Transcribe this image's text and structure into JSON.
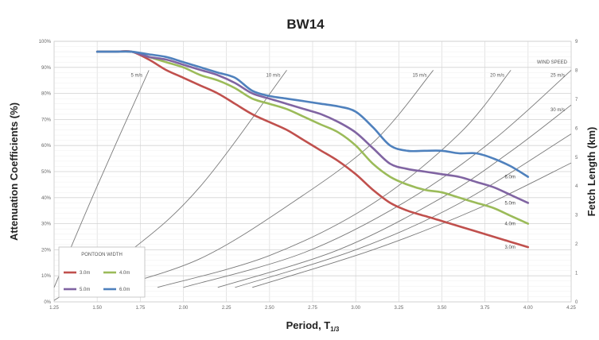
{
  "chart_data": {
    "type": "line",
    "title": "BW14",
    "xlabel": "Period, T",
    "xlabel_sub": "1/3",
    "ylabel": "Attenuation Coefficients (%)",
    "y2label": "Fetch Length (km)",
    "xlim": [
      1.25,
      4.25
    ],
    "ylim": [
      0,
      100
    ],
    "y2lim": [
      0,
      9
    ],
    "x_ticks": [
      "1.25",
      "1.50",
      "1.75",
      "2.00",
      "2.25",
      "2.50",
      "2.75",
      "3.00",
      "3.25",
      "3.50",
      "3.75",
      "4.00",
      "4.25"
    ],
    "y_ticks": [
      "0%",
      "10%",
      "20%",
      "30%",
      "40%",
      "50%",
      "60%",
      "70%",
      "80%",
      "90%",
      "100%"
    ],
    "y2_ticks": [
      "0",
      "1",
      "2",
      "3",
      "4",
      "5",
      "6",
      "7",
      "8",
      "9"
    ],
    "legend_title": "PONTOON WIDTH",
    "series": [
      {
        "name": "3.0m",
        "color": "#c0504d",
        "end_label": "3.0m",
        "x": [
          1.5,
          1.6,
          1.7,
          1.8,
          1.9,
          2.0,
          2.1,
          2.2,
          2.3,
          2.4,
          2.5,
          2.6,
          2.7,
          2.8,
          2.9,
          3.0,
          3.1,
          3.2,
          3.3,
          3.4,
          3.5,
          3.6,
          3.7,
          3.8,
          3.9,
          4.0
        ],
        "y": [
          96,
          96,
          96,
          93,
          89,
          86,
          83,
          80,
          76,
          72,
          69,
          66,
          62,
          58,
          54,
          49,
          43,
          38,
          35,
          33,
          31,
          29,
          27,
          25,
          23,
          21
        ]
      },
      {
        "name": "4.0m",
        "color": "#9bbb59",
        "end_label": "4.0m",
        "x": [
          1.5,
          1.6,
          1.7,
          1.8,
          1.9,
          2.0,
          2.1,
          2.2,
          2.3,
          2.4,
          2.5,
          2.6,
          2.7,
          2.8,
          2.9,
          3.0,
          3.1,
          3.2,
          3.3,
          3.4,
          3.5,
          3.6,
          3.7,
          3.8,
          3.9,
          4.0
        ],
        "y": [
          96,
          96,
          96,
          94,
          92,
          90,
          87,
          85,
          82,
          78,
          76,
          74,
          71,
          68,
          65,
          60,
          53,
          48,
          45,
          43,
          42,
          40,
          38,
          36,
          33,
          30
        ]
      },
      {
        "name": "5.0m",
        "color": "#8064a2",
        "end_label": "5.0m",
        "x": [
          1.5,
          1.6,
          1.7,
          1.8,
          1.9,
          2.0,
          2.1,
          2.2,
          2.3,
          2.4,
          2.5,
          2.6,
          2.7,
          2.8,
          2.9,
          3.0,
          3.1,
          3.2,
          3.3,
          3.4,
          3.5,
          3.6,
          3.7,
          3.8,
          3.9,
          4.0
        ],
        "y": [
          96,
          96,
          96,
          94,
          93,
          91,
          89,
          87,
          84,
          80,
          78,
          76,
          74,
          72,
          69,
          65,
          59,
          53,
          51,
          50,
          49,
          48,
          46,
          44,
          41,
          38
        ]
      },
      {
        "name": "6.0m",
        "color": "#4f81bd",
        "end_label": "6.0m",
        "x": [
          1.5,
          1.6,
          1.7,
          1.8,
          1.9,
          2.0,
          2.1,
          2.2,
          2.3,
          2.4,
          2.5,
          2.6,
          2.7,
          2.8,
          2.9,
          3.0,
          3.1,
          3.2,
          3.3,
          3.4,
          3.5,
          3.6,
          3.7,
          3.8,
          3.9,
          4.0
        ],
        "y": [
          96,
          96,
          96,
          95,
          94,
          92,
          90,
          88,
          86,
          81,
          79,
          78,
          77,
          76,
          75,
          73,
          67,
          60,
          58,
          58,
          58,
          57,
          57,
          55,
          52,
          48
        ]
      }
    ],
    "wind_speed_title": "WIND SPEED",
    "wind_curves": [
      {
        "label": "5 m/s",
        "points": [
          [
            1.25,
            0.5
          ],
          [
            1.5,
            4.0
          ],
          [
            1.8,
            8.0
          ]
        ]
      },
      {
        "label": "10 m/s",
        "points": [
          [
            1.25,
            0.05
          ],
          [
            1.7,
            1.8
          ],
          [
            2.1,
            4.0
          ],
          [
            2.6,
            8.0
          ]
        ]
      },
      {
        "label": "15 m/s",
        "points": [
          [
            1.6,
            0.5
          ],
          [
            2.1,
            1.5
          ],
          [
            2.6,
            3.3
          ],
          [
            3.1,
            5.5
          ],
          [
            3.45,
            8.0
          ]
        ]
      },
      {
        "label": "20 m/s",
        "points": [
          [
            1.85,
            0.5
          ],
          [
            2.5,
            1.6
          ],
          [
            3.1,
            3.4
          ],
          [
            3.6,
            5.8
          ],
          [
            3.9,
            8.0
          ]
        ]
      },
      {
        "label": "25 m/s",
        "points": [
          [
            2.0,
            0.5
          ],
          [
            2.7,
            1.7
          ],
          [
            3.3,
            3.5
          ],
          [
            3.8,
            5.6
          ],
          [
            4.25,
            8.0
          ]
        ]
      },
      {
        "label": "30 m/s",
        "points": [
          [
            2.2,
            0.5
          ],
          [
            2.9,
            1.8
          ],
          [
            3.5,
            3.6
          ],
          [
            3.9,
            5.2
          ],
          [
            4.25,
            6.8
          ]
        ]
      },
      {
        "label": "",
        "points": [
          [
            2.3,
            0.5
          ],
          [
            3.0,
            1.8
          ],
          [
            3.6,
            3.4
          ],
          [
            4.25,
            5.8
          ]
        ]
      },
      {
        "label": "",
        "points": [
          [
            2.4,
            0.5
          ],
          [
            3.1,
            1.8
          ],
          [
            3.7,
            3.2
          ],
          [
            4.25,
            4.8
          ]
        ]
      }
    ],
    "grid": true,
    "legend_position": "bottom-left"
  }
}
